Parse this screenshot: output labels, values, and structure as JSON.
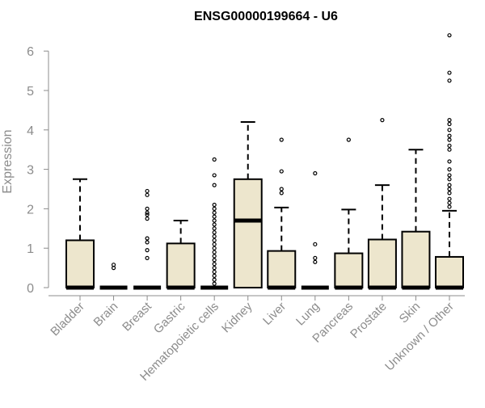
{
  "chart_data": {
    "type": "box",
    "title": "ENSG00000199664 - U6",
    "xlabel": "",
    "ylabel": "Expression",
    "ylim": [
      0,
      6.5
    ],
    "yticks": [
      0,
      1,
      2,
      3,
      4,
      5,
      6
    ],
    "grid": false,
    "legend": "none",
    "colors": {
      "box_fill": "#ede6cd",
      "box_stroke": "#000000",
      "median": "#000000",
      "axis": "#8c8c8c",
      "tick_label": "#8c8c8c",
      "title": "#000000"
    },
    "categories": [
      "Bladder",
      "Brain",
      "Breast",
      "Gastric",
      "Hematopoietic cells",
      "Kidney",
      "Liver",
      "Lung",
      "Pancreas",
      "Prostate",
      "Skin",
      "Unknown / Other"
    ],
    "boxes": [
      {
        "category": "Bladder",
        "q1": 0,
        "median": 0,
        "q3": 1.2,
        "whisker_low": 0,
        "whisker_high": 2.75,
        "outliers": []
      },
      {
        "category": "Brain",
        "q1": 0,
        "median": 0,
        "q3": 0,
        "whisker_low": 0,
        "whisker_high": 0,
        "outliers": [
          0.5,
          0.58
        ]
      },
      {
        "category": "Breast",
        "q1": 0,
        "median": 0,
        "q3": 0,
        "whisker_low": 0,
        "whisker_high": 0,
        "outliers": [
          0.75,
          0.95,
          1.15,
          1.25,
          1.75,
          1.85,
          1.9,
          2.0,
          2.35,
          2.45
        ]
      },
      {
        "category": "Gastric",
        "q1": 0,
        "median": 0,
        "q3": 1.12,
        "whisker_low": 0,
        "whisker_high": 1.7,
        "outliers": []
      },
      {
        "category": "Hematopoietic cells",
        "q1": 0,
        "median": 0,
        "q3": 0,
        "whisker_low": 0,
        "whisker_high": 0,
        "outliers": [
          0.1,
          0.2,
          0.3,
          0.4,
          0.5,
          0.6,
          0.7,
          0.8,
          0.9,
          1.0,
          1.1,
          1.2,
          1.3,
          1.4,
          1.5,
          1.6,
          1.7,
          1.8,
          1.9,
          2.0,
          2.1,
          2.6,
          2.85,
          3.25
        ]
      },
      {
        "category": "Kidney",
        "q1": 0,
        "median": 1.7,
        "q3": 2.75,
        "whisker_low": 0,
        "whisker_high": 4.2,
        "outliers": []
      },
      {
        "category": "Liver",
        "q1": 0,
        "median": 0,
        "q3": 0.93,
        "whisker_low": 0,
        "whisker_high": 2.03,
        "outliers": [
          2.4,
          2.5,
          2.95,
          3.75
        ]
      },
      {
        "category": "Lung",
        "q1": 0,
        "median": 0,
        "q3": 0,
        "whisker_low": 0,
        "whisker_high": 0,
        "outliers": [
          0.65,
          0.75,
          1.1,
          2.9
        ]
      },
      {
        "category": "Pancreas",
        "q1": 0,
        "median": 0,
        "q3": 0.87,
        "whisker_low": 0,
        "whisker_high": 1.98,
        "outliers": [
          3.75
        ]
      },
      {
        "category": "Prostate",
        "q1": 0,
        "median": 0,
        "q3": 1.22,
        "whisker_low": 0,
        "whisker_high": 2.6,
        "outliers": [
          4.25
        ]
      },
      {
        "category": "Skin",
        "q1": 0,
        "median": 0,
        "q3": 1.42,
        "whisker_low": 0,
        "whisker_high": 3.5,
        "outliers": []
      },
      {
        "category": "Unknown / Other",
        "q1": 0,
        "median": 0,
        "q3": 0.78,
        "whisker_low": 0,
        "whisker_high": 1.95,
        "outliers": [
          2.05,
          2.15,
          2.25,
          2.4,
          2.5,
          2.6,
          2.75,
          2.85,
          3.0,
          3.2,
          3.5,
          3.6,
          3.75,
          3.85,
          4.0,
          4.15,
          4.25,
          5.25,
          5.45,
          6.4
        ]
      }
    ]
  }
}
